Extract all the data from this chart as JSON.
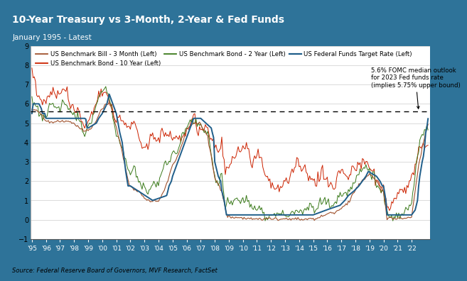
{
  "title": "10-Year Treasury vs 3-Month, 2-Year & Fed Funds",
  "subtitle": "January 1995 - Latest",
  "source": "Source: Federal Reserve Board of Governors, MVF Research, FactSet",
  "dashed_line_y": 5.6,
  "dashed_annotation": "5.6% FOMC median outlook\nfor 2023 Fed funds rate\n(implies 5.75% upper bound)",
  "ylim": [
    -1,
    9
  ],
  "yticks": [
    -1,
    0,
    1,
    2,
    3,
    4,
    5,
    6,
    7,
    8,
    9
  ],
  "header_bg": "#2e7399",
  "plot_bg": "#ffffff",
  "grid_color": "#cccccc",
  "colors": {
    "3month": "#A0522D",
    "10year": "#CC2200",
    "2year": "#3A7A1A",
    "fedfunds": "#1F5E8A"
  },
  "legend": [
    {
      "label": "US Benchmark Bill - 3 Month (Left)",
      "color": "#A0522D"
    },
    {
      "label": "US Benchmark Bond - 10 Year (Left)",
      "color": "#CC2200"
    },
    {
      "label": "US Benchmark Bond - 2 Year (Left)",
      "color": "#3A7A1A"
    },
    {
      "label": "US Federal Funds Target Rate (Left)",
      "color": "#1F5E8A"
    }
  ],
  "xtick_years": [
    "'95",
    "'96",
    "'97",
    "'98",
    "'99",
    "'00",
    "'01",
    "'02",
    "'03",
    "'04",
    "'05",
    "'06",
    "'07",
    "'08",
    "'09",
    "'10",
    "'11",
    "'12",
    "'13",
    "'14",
    "'15",
    "'16",
    "'17",
    "'18",
    "'19",
    "'20",
    "'21",
    "'22"
  ],
  "xtick_positions": [
    1995,
    1996,
    1997,
    1998,
    1999,
    2000,
    2001,
    2002,
    2003,
    2004,
    2005,
    2006,
    2007,
    2008,
    2009,
    2010,
    2011,
    2012,
    2013,
    2014,
    2015,
    2016,
    2017,
    2018,
    2019,
    2020,
    2021,
    2022
  ]
}
